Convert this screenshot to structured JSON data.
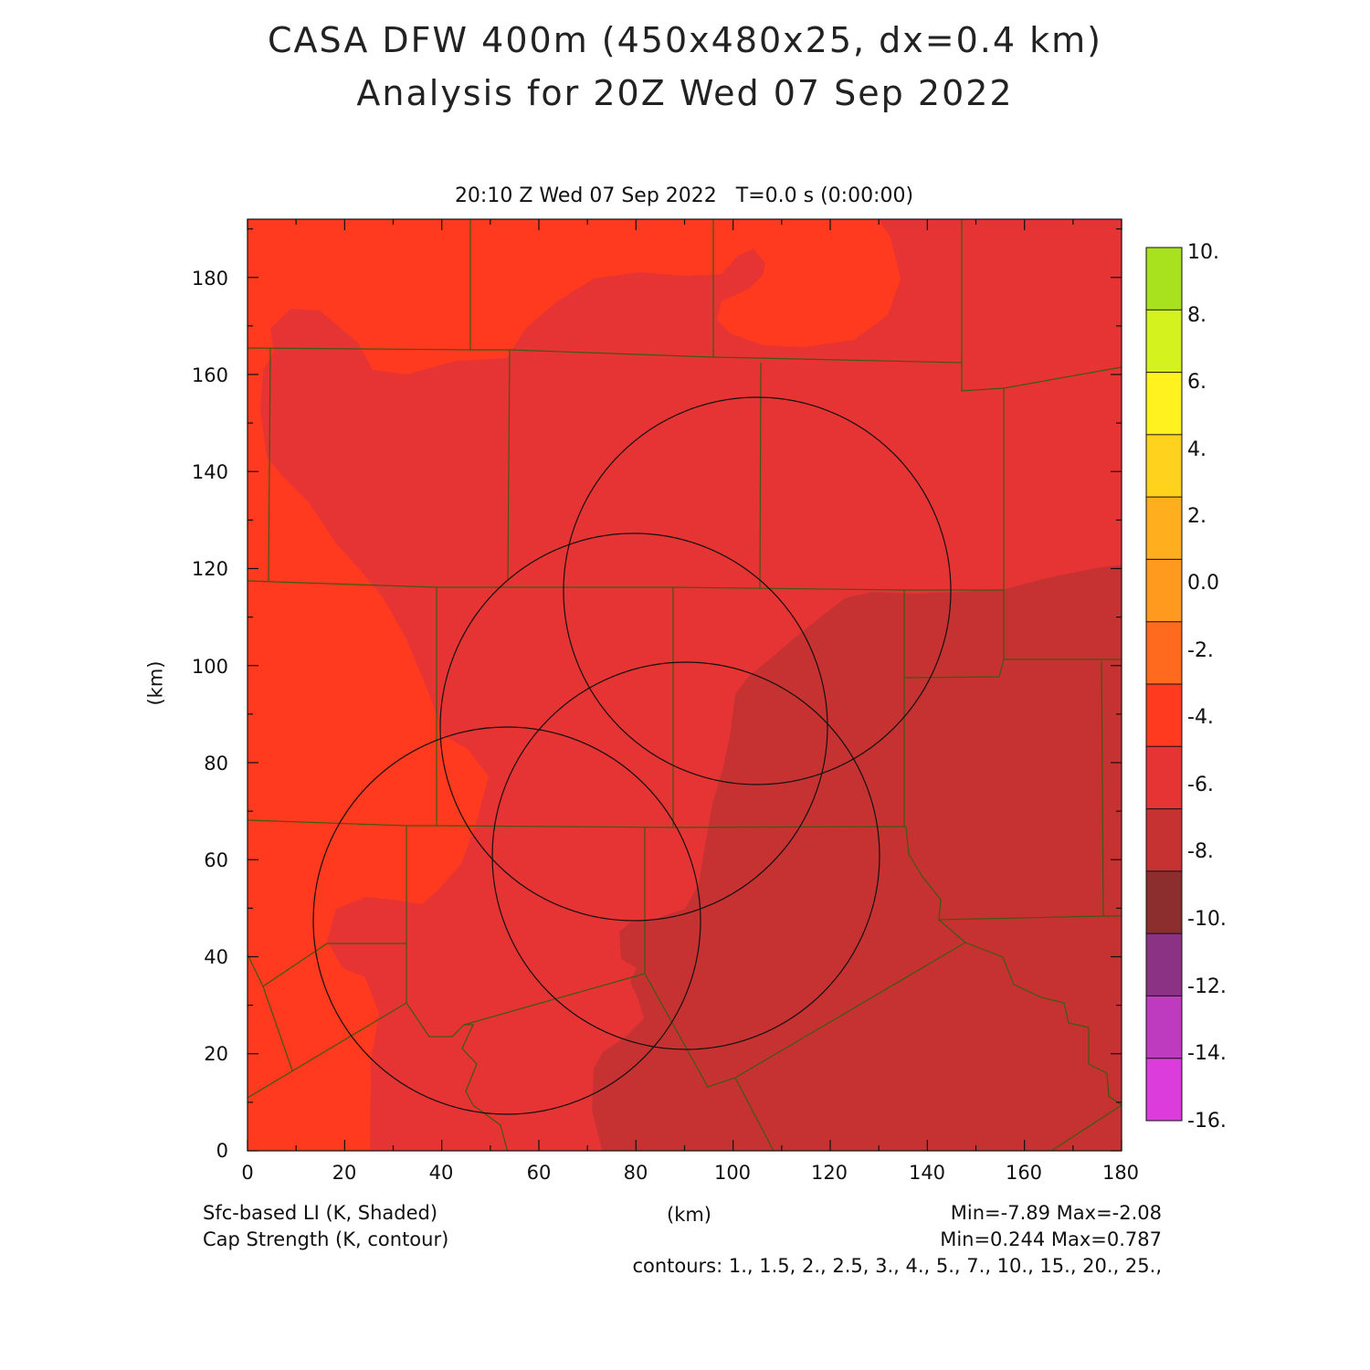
{
  "title_line1": "CASA DFW 400m (450x480x25, dx=0.4 km)",
  "title_line2": "Analysis for 20Z Wed 07 Sep 2022",
  "subtitle": "20:10 Z Wed 07 Sep 2022   T=0.0 s (0:00:00)",
  "x_axis": {
    "label": "(km)",
    "ticks": [
      "0",
      "20",
      "40",
      "60",
      "80",
      "100",
      "120",
      "140",
      "160",
      "180"
    ]
  },
  "y_axis": {
    "label": "(km)",
    "ticks": [
      "0",
      "20",
      "40",
      "60",
      "80",
      "100",
      "120",
      "140",
      "160",
      "180"
    ]
  },
  "colorbar": {
    "labels": [
      "10.",
      "8.",
      "6.",
      "4.",
      "2.",
      "0.0",
      "-2.",
      "-4.",
      "-6.",
      "-8.",
      "-10.",
      "-12.",
      "-14.",
      "-16."
    ],
    "colors": [
      "#a8e21e",
      "#d4f21e",
      "#fff21e",
      "#ffd21e",
      "#ffae1e",
      "#ff9a1e",
      "#ff6a1e",
      "#ff3a1e",
      "#e63434",
      "#c63232",
      "#8c2e2e",
      "#8c3284",
      "#be3abe",
      "#dc3cdc"
    ]
  },
  "field_colors": {
    "light": "#ff3a1e",
    "medium": "#e63434",
    "dark": "#c63232"
  },
  "footer": {
    "shaded_field": "Sfc-based LI (K, Shaded)",
    "contour_field": "Cap Strength (K, contour)",
    "x_unit": "(km)",
    "shaded_minmax": "Min=-7.89 Max=-2.08",
    "contour_minmax": "Min=0.244 Max=0.787",
    "contour_levels": "contours: 1., 1.5, 2., 2.5, 3., 4., 5., 7., 10., 15., 20., 25.,"
  }
}
